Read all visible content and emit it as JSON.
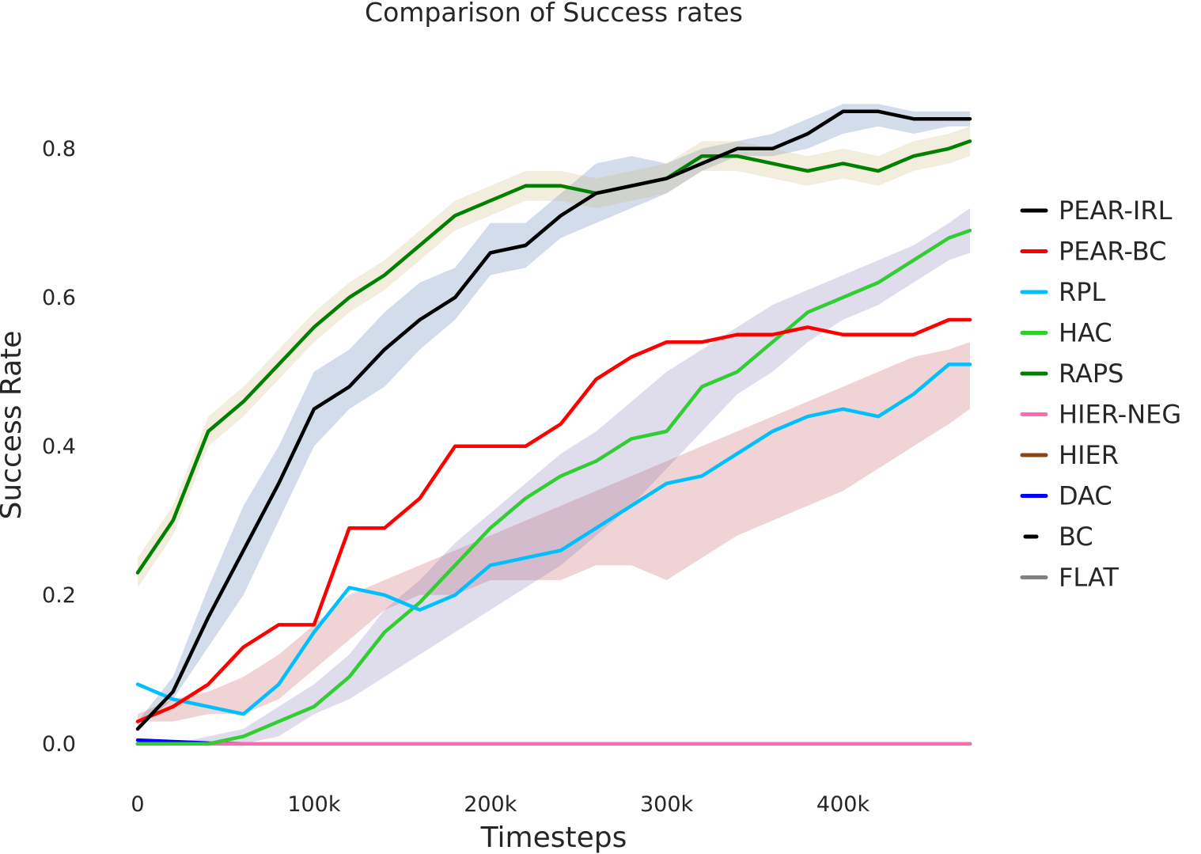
{
  "chart_data": {
    "type": "line",
    "title": "Comparison of Success rates",
    "xlabel": "Timesteps",
    "ylabel": "Success Rate",
    "xlim": [
      0,
      472000
    ],
    "ylim": [
      -0.03,
      0.87
    ],
    "x_ticks": [
      {
        "value": 0,
        "label": "0"
      },
      {
        "value": 100000,
        "label": "100k"
      },
      {
        "value": 200000,
        "label": "200k"
      },
      {
        "value": 300000,
        "label": "300k"
      },
      {
        "value": 400000,
        "label": "400k"
      }
    ],
    "y_ticks": [
      {
        "value": 0.0,
        "label": "0.0"
      },
      {
        "value": 0.2,
        "label": "0.2"
      },
      {
        "value": 0.4,
        "label": "0.4"
      },
      {
        "value": 0.6,
        "label": "0.6"
      },
      {
        "value": 0.8,
        "label": "0.8"
      }
    ],
    "grid": false,
    "legend_position": "right",
    "x": [
      0,
      20000,
      40000,
      60000,
      80000,
      100000,
      120000,
      140000,
      160000,
      180000,
      200000,
      220000,
      240000,
      260000,
      280000,
      300000,
      320000,
      340000,
      360000,
      380000,
      400000,
      420000,
      440000,
      460000,
      472000
    ],
    "series": [
      {
        "name": "PEAR-IRL",
        "color": "#000000",
        "dash": "solid",
        "values": [
          0.02,
          0.07,
          0.17,
          0.26,
          0.35,
          0.45,
          0.48,
          0.53,
          0.57,
          0.6,
          0.66,
          0.67,
          0.71,
          0.74,
          0.75,
          0.76,
          0.78,
          0.8,
          0.8,
          0.82,
          0.85,
          0.85,
          0.84,
          0.84,
          0.84
        ],
        "band_lower": [
          0.02,
          0.06,
          0.13,
          0.2,
          0.3,
          0.4,
          0.45,
          0.48,
          0.53,
          0.57,
          0.63,
          0.64,
          0.68,
          0.7,
          0.72,
          0.74,
          0.77,
          0.79,
          0.79,
          0.8,
          0.82,
          0.83,
          0.82,
          0.83,
          0.83
        ],
        "band_upper": [
          0.03,
          0.09,
          0.21,
          0.32,
          0.4,
          0.5,
          0.53,
          0.58,
          0.62,
          0.64,
          0.7,
          0.7,
          0.74,
          0.78,
          0.79,
          0.78,
          0.8,
          0.81,
          0.82,
          0.84,
          0.86,
          0.86,
          0.85,
          0.85,
          0.85
        ],
        "band_color": "#4c72b0"
      },
      {
        "name": "PEAR-BC",
        "color": "#ff0000",
        "dash": "solid",
        "values": [
          0.03,
          0.05,
          0.08,
          0.13,
          0.16,
          0.16,
          0.29,
          0.29,
          0.33,
          0.4,
          0.4,
          0.4,
          0.43,
          0.49,
          0.52,
          0.54,
          0.54,
          0.55,
          0.55,
          0.56,
          0.55,
          0.55,
          0.55,
          0.57,
          0.57
        ],
        "band_lower": [
          0.03,
          0.03,
          0.04,
          0.04,
          0.06,
          0.1,
          0.14,
          0.18,
          0.2,
          0.2,
          0.22,
          0.22,
          0.22,
          0.24,
          0.24,
          0.22,
          0.25,
          0.28,
          0.3,
          0.32,
          0.34,
          0.37,
          0.4,
          0.43,
          0.45
        ],
        "band_upper": [
          0.04,
          0.06,
          0.07,
          0.09,
          0.12,
          0.16,
          0.2,
          0.22,
          0.24,
          0.26,
          0.28,
          0.3,
          0.32,
          0.34,
          0.36,
          0.38,
          0.4,
          0.42,
          0.44,
          0.46,
          0.48,
          0.5,
          0.52,
          0.53,
          0.54
        ],
        "band_color": "#c44e52"
      },
      {
        "name": "RPL",
        "color": "#00bfff",
        "dash": "solid",
        "values": [
          0.08,
          0.06,
          0.05,
          0.04,
          0.08,
          0.15,
          0.21,
          0.2,
          0.18,
          0.2,
          0.24,
          0.25,
          0.26,
          0.29,
          0.32,
          0.35,
          0.36,
          0.39,
          0.42,
          0.44,
          0.45,
          0.44,
          0.47,
          0.51,
          0.51
        ],
        "band_color": null
      },
      {
        "name": "HAC",
        "color": "#32cd32",
        "dash": "solid",
        "values": [
          0.0,
          0.0,
          0.0,
          0.01,
          0.03,
          0.05,
          0.09,
          0.15,
          0.19,
          0.24,
          0.29,
          0.33,
          0.36,
          0.38,
          0.41,
          0.42,
          0.48,
          0.5,
          0.54,
          0.58,
          0.6,
          0.62,
          0.65,
          0.68,
          0.69
        ],
        "band_lower": [
          0.0,
          0.0,
          0.0,
          0.0,
          0.01,
          0.04,
          0.06,
          0.09,
          0.12,
          0.15,
          0.18,
          0.21,
          0.24,
          0.28,
          0.32,
          0.37,
          0.42,
          0.47,
          0.5,
          0.54,
          0.57,
          0.59,
          0.62,
          0.65,
          0.66
        ],
        "band_upper": [
          0.0,
          0.0,
          0.01,
          0.02,
          0.05,
          0.08,
          0.12,
          0.18,
          0.22,
          0.27,
          0.31,
          0.35,
          0.39,
          0.42,
          0.46,
          0.5,
          0.53,
          0.56,
          0.59,
          0.61,
          0.63,
          0.65,
          0.67,
          0.7,
          0.72
        ],
        "band_color": "#8172b2"
      },
      {
        "name": "RAPS",
        "color": "#008000",
        "dash": "solid",
        "values": [
          0.23,
          0.3,
          0.42,
          0.46,
          0.51,
          0.56,
          0.6,
          0.63,
          0.67,
          0.71,
          0.73,
          0.75,
          0.75,
          0.74,
          0.75,
          0.76,
          0.79,
          0.79,
          0.78,
          0.77,
          0.78,
          0.77,
          0.79,
          0.8,
          0.81
        ],
        "band_lower": [
          0.21,
          0.28,
          0.4,
          0.44,
          0.49,
          0.54,
          0.58,
          0.61,
          0.65,
          0.69,
          0.71,
          0.73,
          0.73,
          0.72,
          0.73,
          0.74,
          0.77,
          0.77,
          0.76,
          0.75,
          0.76,
          0.75,
          0.77,
          0.78,
          0.79
        ],
        "band_upper": [
          0.25,
          0.32,
          0.44,
          0.48,
          0.53,
          0.58,
          0.62,
          0.65,
          0.69,
          0.73,
          0.75,
          0.77,
          0.77,
          0.76,
          0.77,
          0.78,
          0.81,
          0.81,
          0.8,
          0.79,
          0.8,
          0.79,
          0.81,
          0.82,
          0.83
        ],
        "band_color": "#ccb974"
      },
      {
        "name": "HIER-NEG",
        "color": "#ff69b4",
        "dash": "solid",
        "values": [
          0.0,
          0.0,
          0.0,
          0.0,
          0.0,
          0.0,
          0.0,
          0.0,
          0.0,
          0.0,
          0.0,
          0.0,
          0.0,
          0.0,
          0.0,
          0.0,
          0.0,
          0.0,
          0.0,
          0.0,
          0.0,
          0.0,
          0.0,
          0.0,
          0.0
        ],
        "band_color": null
      },
      {
        "name": "HIER",
        "color": "#8b4513",
        "dash": "solid",
        "values": [
          0.0,
          0.0,
          0.0,
          0.0,
          0.0,
          0.0,
          0.0,
          0.0,
          0.0,
          0.0,
          0.0,
          0.0,
          0.0,
          0.0,
          0.0,
          0.0,
          0.0,
          0.0,
          0.0,
          0.0,
          0.0,
          0.0,
          0.0,
          0.0,
          0.0
        ],
        "band_color": null
      },
      {
        "name": "DAC",
        "color": "#0000ff",
        "dash": "solid",
        "values": [
          0.005,
          0.003,
          0.001,
          0.0,
          0.0,
          0.0,
          0.0,
          0.0,
          0.0,
          0.0,
          0.0,
          0.0,
          0.0,
          0.0,
          0.0,
          0.0,
          0.0,
          0.0,
          0.0,
          0.0,
          0.0,
          0.0,
          0.0,
          0.0,
          0.0
        ],
        "band_color": null
      },
      {
        "name": "BC",
        "color": "#000000",
        "dash": "dashed",
        "values": [
          0.0,
          0.0,
          0.0,
          0.0,
          0.0,
          0.0,
          0.0,
          0.0,
          0.0,
          0.0,
          0.0,
          0.0,
          0.0,
          0.0,
          0.0,
          0.0,
          0.0,
          0.0,
          0.0,
          0.0,
          0.0,
          0.0,
          0.0,
          0.0,
          0.0
        ],
        "band_color": null
      },
      {
        "name": "FLAT",
        "color": "#808080",
        "dash": "solid",
        "values": [
          0.0,
          0.0,
          0.0,
          0.0,
          0.0,
          0.0,
          0.0,
          0.0,
          0.0,
          0.0,
          0.0,
          0.0,
          0.0,
          0.0,
          0.0,
          0.0,
          0.0,
          0.0,
          0.0,
          0.0,
          0.0,
          0.0,
          0.0,
          0.0,
          0.0
        ],
        "band_color": null
      }
    ]
  }
}
